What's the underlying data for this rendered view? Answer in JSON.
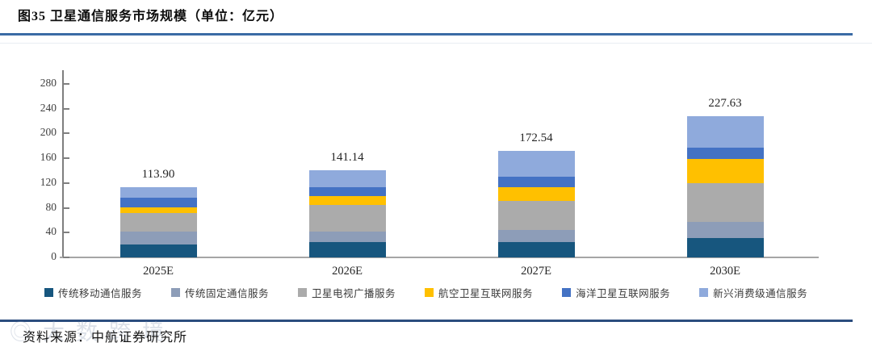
{
  "title": "图35 卫星通信服务市场规模（单位：亿元）",
  "source": "资料来源：中航证券研究所",
  "watermark": "◎大数跨境",
  "accent_colors": {
    "title_rule": "#3a6ba5",
    "bottom_rule": "#2b4d7e",
    "axis": "#7f7f7f",
    "baseline": "#a6a6a6"
  },
  "chart_data": {
    "type": "bar",
    "stacked": true,
    "title": "卫星通信服务市场规模",
    "unit": "亿元",
    "categories": [
      "2025E",
      "2026E",
      "2027E",
      "2030E"
    ],
    "totals_labels": [
      "113.90",
      "141.14",
      "172.54",
      "227.63"
    ],
    "totals": [
      113.9,
      141.14,
      172.54,
      227.63
    ],
    "series": [
      {
        "name": "传统移动通信服务",
        "color": "#17567e",
        "values": [
          20.6,
          24.5,
          24.3,
          30.9
        ]
      },
      {
        "name": "传统固定通信服务",
        "color": "#8d9db8",
        "values": [
          21.5,
          17.0,
          20.4,
          27.0
        ]
      },
      {
        "name": "卫星电视广播服务",
        "color": "#ababab",
        "values": [
          29.1,
          43.5,
          46.9,
          62.3
        ]
      },
      {
        "name": "航空卫星互联网服务",
        "color": "#ffc000",
        "values": [
          10.0,
          14.1,
          21.3,
          38.7
        ]
      },
      {
        "name": "海洋卫星互联网服务",
        "color": "#4472c4",
        "values": [
          15.2,
          14.0,
          17.0,
          18.4
        ]
      },
      {
        "name": "新兴消费级通信服务",
        "color": "#8faadc",
        "values": [
          17.5,
          28.0,
          42.6,
          50.3
        ]
      }
    ],
    "ylim": [
      0,
      280
    ],
    "yticks": [
      0,
      40,
      80,
      120,
      160,
      200,
      240,
      280
    ],
    "grid": false,
    "legend_position": "bottom",
    "value_labels": "total above each stacked bar"
  }
}
